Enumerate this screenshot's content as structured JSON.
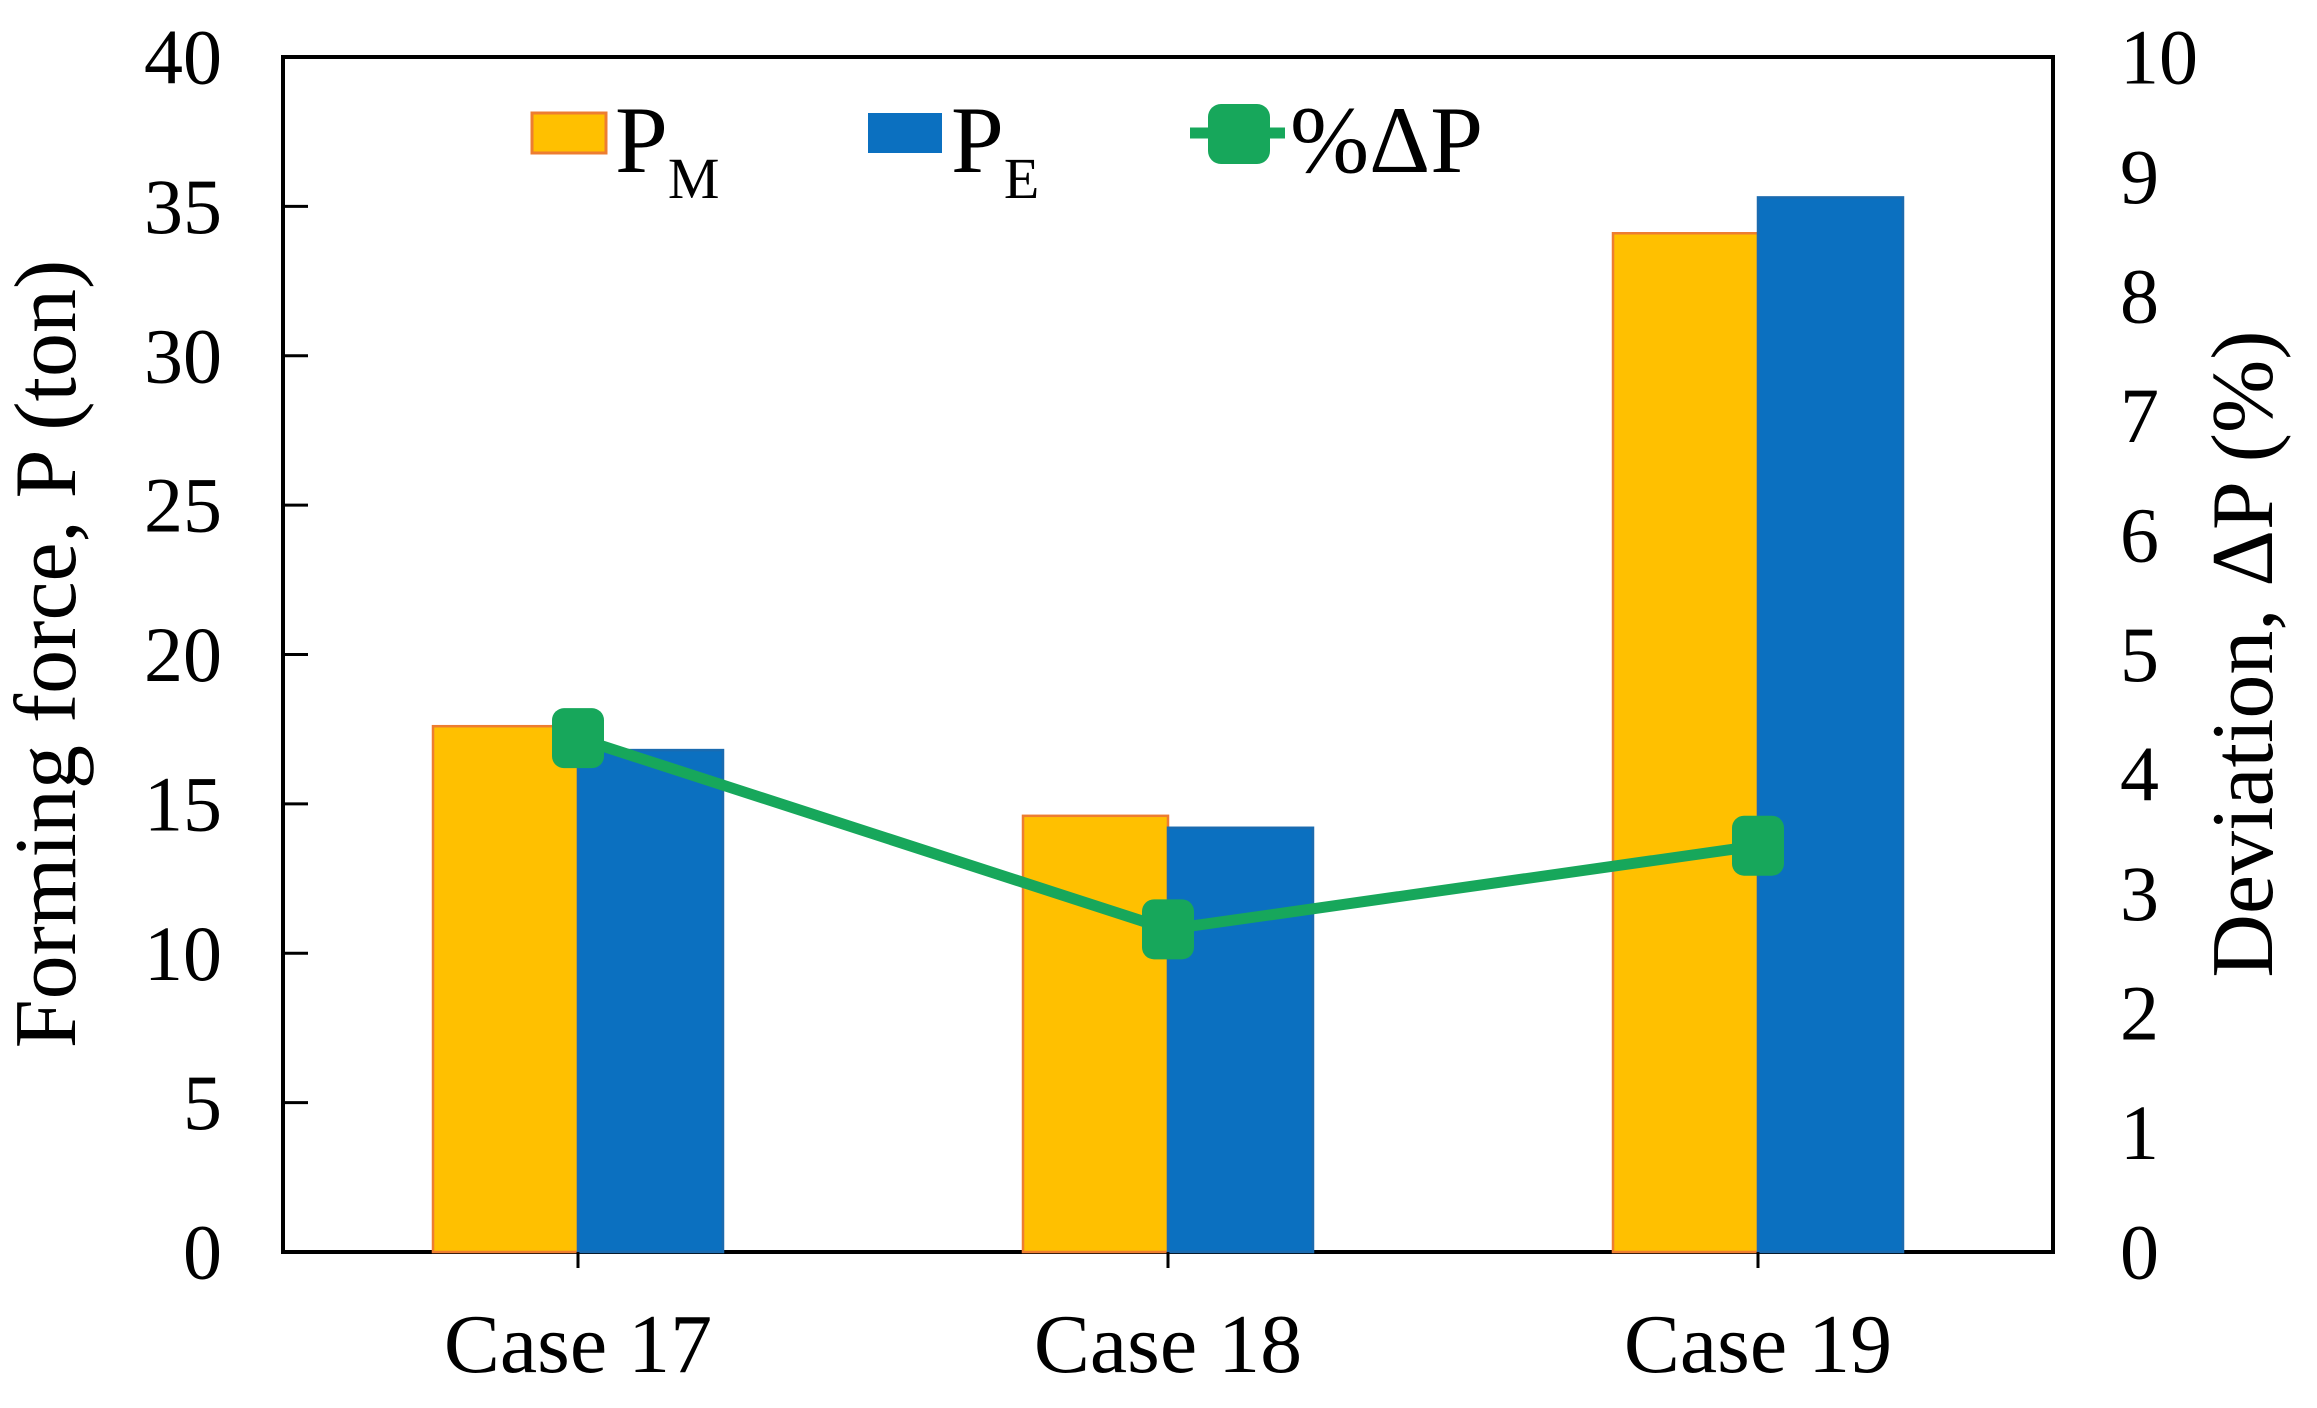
{
  "figure": {
    "background": "#FFFFFF",
    "frame_color": "#000000"
  },
  "legend": {
    "position": "top-inside",
    "items": [
      {
        "label_main": "P",
        "label_sub": "M",
        "series": "PM",
        "swatch_color": "#FFC000",
        "swatch_edge": "#ED7D31",
        "swatch_shape": "rect"
      },
      {
        "label_main": "P",
        "label_sub": "E",
        "series": "PE",
        "swatch_color": "#0B70C0",
        "swatch_edge": "#1A6BB0",
        "swatch_shape": "rect"
      },
      {
        "label_main": "%ΔP",
        "label_sub": "",
        "series": "dP",
        "swatch_color": "#17A75B",
        "swatch_edge": "#17A75B",
        "swatch_shape": "rounded-square-with-line"
      }
    ]
  },
  "chart_data": {
    "type": "bar",
    "subtype": "grouped bars + line on secondary axis",
    "categories": [
      "Case 17",
      "Case 18",
      "Case 19"
    ],
    "series": [
      {
        "name": "PM",
        "display": "P_M",
        "type": "bar",
        "axis": "left",
        "color": "#FFC000",
        "edge_color": "#ED7D31",
        "values": [
          17.6,
          14.6,
          34.1
        ]
      },
      {
        "name": "PE",
        "display": "P_E",
        "type": "bar",
        "axis": "left",
        "color": "#0B70C0",
        "edge_color": "#1A6BB0",
        "values": [
          16.8,
          14.2,
          35.3
        ]
      },
      {
        "name": "%ΔP",
        "display": "%ΔP",
        "type": "line",
        "axis": "right",
        "color": "#17A75B",
        "marker": "rounded-square",
        "values": [
          4.3,
          2.7,
          3.4
        ]
      }
    ],
    "title": "",
    "xlabel": "",
    "ylabel_left": "Forming force, P (ton)",
    "ylabel_right": "Deviation, ΔP (%)",
    "left_axis": {
      "min": 0,
      "max": 40,
      "tick_step": 5,
      "tick_labels": [
        "40",
        "35",
        "30",
        "25",
        "20",
        "15",
        "10",
        "5",
        "0"
      ]
    },
    "right_axis": {
      "min": 0,
      "max": 10,
      "tick_step": 1,
      "tick_labels": [
        "10",
        "9",
        "8",
        "7",
        "6",
        "5",
        "4",
        "3",
        "2",
        "1",
        "0"
      ]
    },
    "grid": false,
    "legend_position": "top-inside"
  }
}
